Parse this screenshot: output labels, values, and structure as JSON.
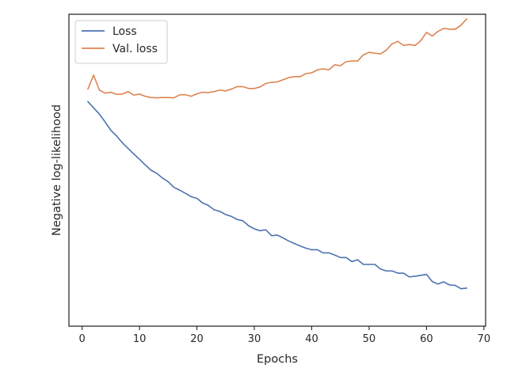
{
  "chart_data": {
    "type": "line",
    "title": "",
    "xlabel": "Epochs",
    "ylabel": "Negative log-likelihood",
    "xlim": [
      -2.3,
      70.3
    ],
    "ylim": [
      0.0,
      1.0
    ],
    "xticks": [
      0,
      10,
      20,
      30,
      40,
      50,
      60,
      70
    ],
    "yticks": [],
    "grid": false,
    "legend_position": "top-left",
    "series": [
      {
        "name": "Loss",
        "color": "#4c72b0",
        "x": [
          1,
          2,
          3,
          4,
          5,
          6,
          7,
          8,
          9,
          10,
          11,
          12,
          13,
          14,
          15,
          16,
          17,
          18,
          19,
          20,
          21,
          22,
          23,
          24,
          25,
          26,
          27,
          28,
          29,
          30,
          31,
          32,
          33,
          34,
          35,
          36,
          37,
          38,
          39,
          40,
          41,
          42,
          43,
          44,
          45,
          46,
          47,
          48,
          49,
          50,
          51,
          52,
          53,
          54,
          55,
          56,
          57,
          58,
          59,
          60,
          61,
          62,
          63,
          64,
          65,
          66,
          67
        ],
        "y": [
          0.72,
          0.7,
          0.68,
          0.655,
          0.628,
          0.61,
          0.588,
          0.57,
          0.552,
          0.535,
          0.517,
          0.5,
          0.49,
          0.475,
          0.463,
          0.445,
          0.436,
          0.426,
          0.415,
          0.41,
          0.395,
          0.387,
          0.373,
          0.368,
          0.358,
          0.352,
          0.342,
          0.338,
          0.322,
          0.312,
          0.306,
          0.309,
          0.29,
          0.292,
          0.283,
          0.273,
          0.265,
          0.257,
          0.25,
          0.245,
          0.245,
          0.235,
          0.235,
          0.228,
          0.22,
          0.22,
          0.207,
          0.213,
          0.198,
          0.198,
          0.198,
          0.183,
          0.177,
          0.177,
          0.17,
          0.17,
          0.158,
          0.16,
          0.163,
          0.166,
          0.143,
          0.135,
          0.142,
          0.132,
          0.131,
          0.12,
          0.122
        ]
      },
      {
        "name": "Val. loss",
        "color": "#dd8452",
        "x": [
          1,
          2,
          3,
          4,
          5,
          6,
          7,
          8,
          9,
          10,
          11,
          12,
          13,
          14,
          15,
          16,
          17,
          18,
          19,
          20,
          21,
          22,
          23,
          24,
          25,
          26,
          27,
          28,
          29,
          30,
          31,
          32,
          33,
          34,
          35,
          36,
          37,
          38,
          39,
          40,
          41,
          42,
          43,
          44,
          45,
          46,
          47,
          48,
          49,
          50,
          51,
          52,
          53,
          54,
          55,
          56,
          57,
          58,
          59,
          60,
          61,
          62,
          63,
          64,
          65,
          66,
          67
        ],
        "y": [
          0.76,
          0.805,
          0.757,
          0.747,
          0.75,
          0.743,
          0.744,
          0.752,
          0.741,
          0.744,
          0.737,
          0.733,
          0.732,
          0.733,
          0.733,
          0.732,
          0.742,
          0.742,
          0.737,
          0.745,
          0.75,
          0.749,
          0.752,
          0.757,
          0.754,
          0.76,
          0.768,
          0.768,
          0.762,
          0.762,
          0.767,
          0.778,
          0.782,
          0.783,
          0.79,
          0.797,
          0.8,
          0.8,
          0.81,
          0.812,
          0.822,
          0.825,
          0.822,
          0.838,
          0.835,
          0.848,
          0.85,
          0.85,
          0.87,
          0.878,
          0.875,
          0.873,
          0.885,
          0.905,
          0.913,
          0.9,
          0.903,
          0.9,
          0.915,
          0.942,
          0.93,
          0.945,
          0.955,
          0.952,
          0.952,
          0.965,
          0.985
        ]
      }
    ]
  }
}
